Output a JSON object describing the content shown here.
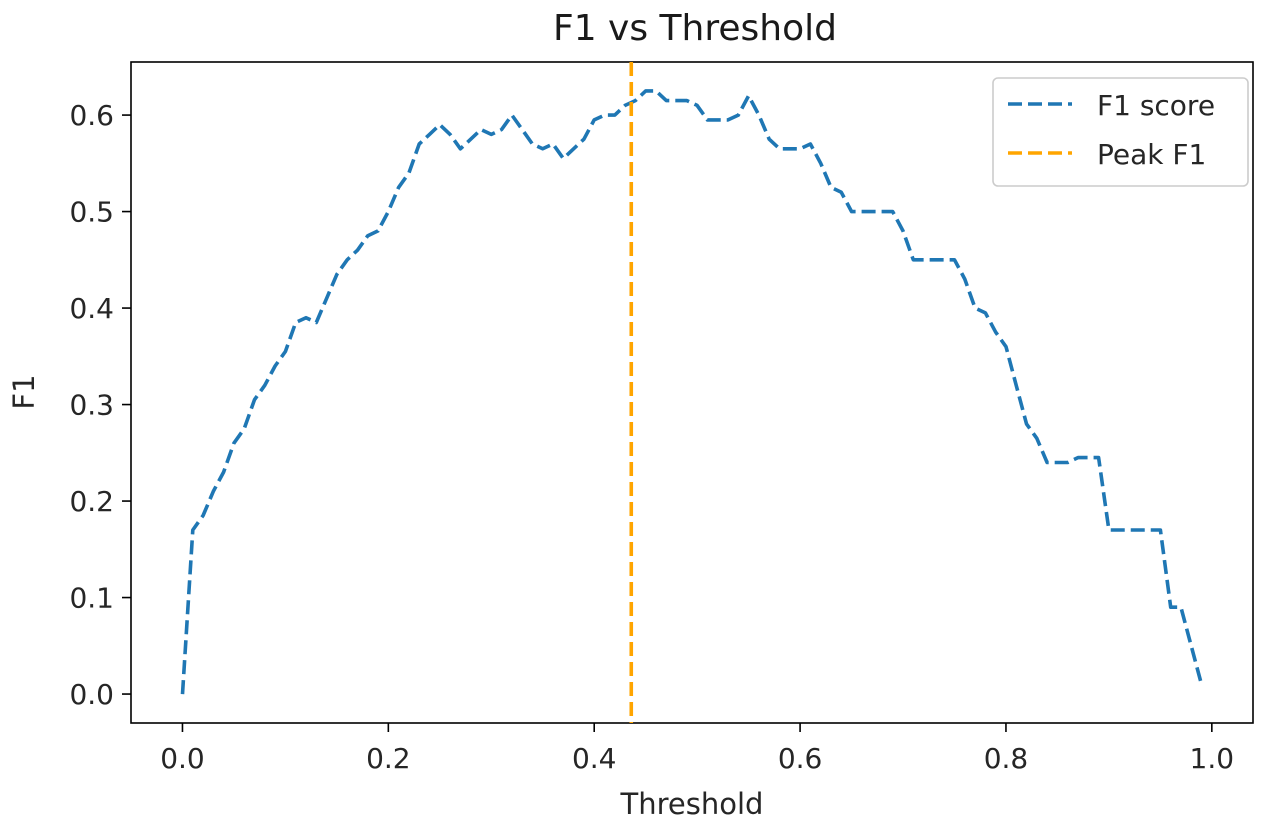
{
  "chart_data": {
    "type": "line",
    "title": "F1 vs Threshold",
    "xlabel": "Threshold",
    "ylabel": "F1",
    "xlim": [
      -0.05,
      1.04
    ],
    "ylim": [
      -0.03,
      0.655
    ],
    "xticks": [
      0.0,
      0.2,
      0.4,
      0.6,
      0.8,
      1.0
    ],
    "xtick_labels": [
      "0.0",
      "0.2",
      "0.4",
      "0.6",
      "0.8",
      "1.0"
    ],
    "yticks": [
      0.0,
      0.1,
      0.2,
      0.3,
      0.4,
      0.5,
      0.6
    ],
    "ytick_labels": [
      "0.0",
      "0.1",
      "0.2",
      "0.3",
      "0.4",
      "0.5",
      "0.6"
    ],
    "grid": false,
    "legend_position": "top-right",
    "series": [
      {
        "name": "F1 score",
        "color": "#1f77b4",
        "style": "dashed",
        "x": [
          0.0,
          0.01,
          0.02,
          0.03,
          0.04,
          0.05,
          0.06,
          0.07,
          0.08,
          0.09,
          0.1,
          0.11,
          0.12,
          0.13,
          0.14,
          0.15,
          0.16,
          0.17,
          0.18,
          0.19,
          0.2,
          0.21,
          0.22,
          0.23,
          0.24,
          0.25,
          0.26,
          0.27,
          0.28,
          0.29,
          0.3,
          0.31,
          0.32,
          0.33,
          0.34,
          0.35,
          0.36,
          0.37,
          0.38,
          0.39,
          0.4,
          0.41,
          0.42,
          0.43,
          0.44,
          0.45,
          0.46,
          0.47,
          0.48,
          0.49,
          0.5,
          0.51,
          0.52,
          0.53,
          0.54,
          0.55,
          0.56,
          0.57,
          0.58,
          0.59,
          0.6,
          0.61,
          0.62,
          0.63,
          0.64,
          0.65,
          0.66,
          0.67,
          0.68,
          0.69,
          0.7,
          0.71,
          0.72,
          0.73,
          0.74,
          0.75,
          0.76,
          0.77,
          0.78,
          0.79,
          0.8,
          0.81,
          0.82,
          0.83,
          0.84,
          0.85,
          0.86,
          0.87,
          0.88,
          0.89,
          0.9,
          0.91,
          0.92,
          0.93,
          0.94,
          0.95,
          0.96,
          0.97,
          0.98,
          0.99
        ],
        "y": [
          0.0,
          0.17,
          0.185,
          0.21,
          0.23,
          0.26,
          0.275,
          0.305,
          0.32,
          0.34,
          0.355,
          0.385,
          0.39,
          0.385,
          0.41,
          0.435,
          0.45,
          0.46,
          0.475,
          0.48,
          0.5,
          0.525,
          0.54,
          0.57,
          0.58,
          0.59,
          0.58,
          0.565,
          0.575,
          0.585,
          0.58,
          0.585,
          0.6,
          0.585,
          0.57,
          0.565,
          0.57,
          0.555,
          0.565,
          0.575,
          0.595,
          0.6,
          0.6,
          0.61,
          0.615,
          0.625,
          0.625,
          0.615,
          0.615,
          0.615,
          0.61,
          0.595,
          0.595,
          0.595,
          0.6,
          0.62,
          0.6,
          0.575,
          0.565,
          0.565,
          0.565,
          0.57,
          0.55,
          0.525,
          0.52,
          0.5,
          0.5,
          0.5,
          0.5,
          0.5,
          0.48,
          0.45,
          0.45,
          0.45,
          0.45,
          0.45,
          0.43,
          0.4,
          0.395,
          0.375,
          0.36,
          0.32,
          0.28,
          0.265,
          0.24,
          0.24,
          0.24,
          0.245,
          0.245,
          0.245,
          0.17,
          0.17,
          0.17,
          0.17,
          0.17,
          0.17,
          0.09,
          0.09,
          0.05,
          0.01
        ]
      },
      {
        "name": "Peak F1",
        "color": "#ffa500",
        "style": "dashed",
        "type": "vline",
        "x": 0.436
      }
    ]
  }
}
